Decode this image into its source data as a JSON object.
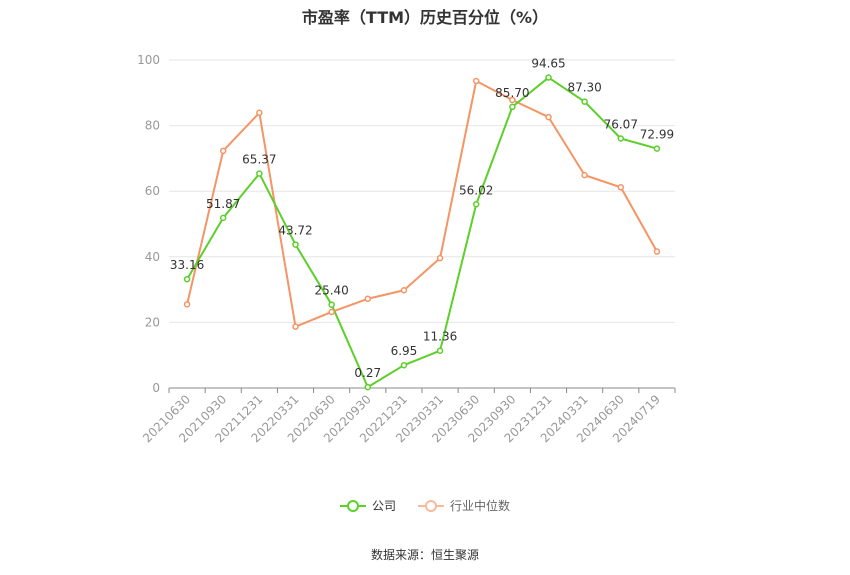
{
  "title": "市盈率（TTM）历史百分位（%）",
  "source": "数据来源：恒生聚源",
  "colors": {
    "company": "#5ccf2a",
    "industry": "#f59465",
    "grid": "#e6e6e6",
    "axis": "#888888",
    "text": "#999999",
    "label": "#333333"
  },
  "chart_data": {
    "type": "line",
    "title": "市盈率（TTM）历史百分位（%）",
    "categories": [
      "20210630",
      "20210930",
      "20211231",
      "20220331",
      "20220630",
      "20220930",
      "20221231",
      "20230331",
      "20230630",
      "20230930",
      "20231231",
      "20240331",
      "20240630",
      "20240719"
    ],
    "ylim": [
      0,
      100
    ],
    "yticks": [
      0,
      20,
      40,
      60,
      80,
      100
    ],
    "grid": true,
    "legend_position": "bottom",
    "series": [
      {
        "name": "公司",
        "color": "#5ccf2a",
        "values": [
          33.16,
          51.87,
          65.37,
          43.72,
          25.4,
          0.27,
          6.95,
          11.36,
          56.02,
          85.7,
          94.65,
          87.3,
          76.07,
          72.99
        ],
        "labels": [
          "33.16",
          "51.87",
          "65.37",
          "43.72",
          "25.40",
          "0.27",
          "6.95",
          "11.36",
          "56.02",
          "85.70",
          "94.65",
          "87.30",
          "76.07",
          "72.99"
        ]
      },
      {
        "name": "行业中位数",
        "color": "#f59465",
        "values": [
          25.5,
          72.3,
          83.9,
          18.7,
          23.2,
          27.2,
          29.8,
          39.6,
          93.6,
          87.8,
          82.6,
          64.9,
          61.2,
          41.6
        ]
      }
    ]
  }
}
